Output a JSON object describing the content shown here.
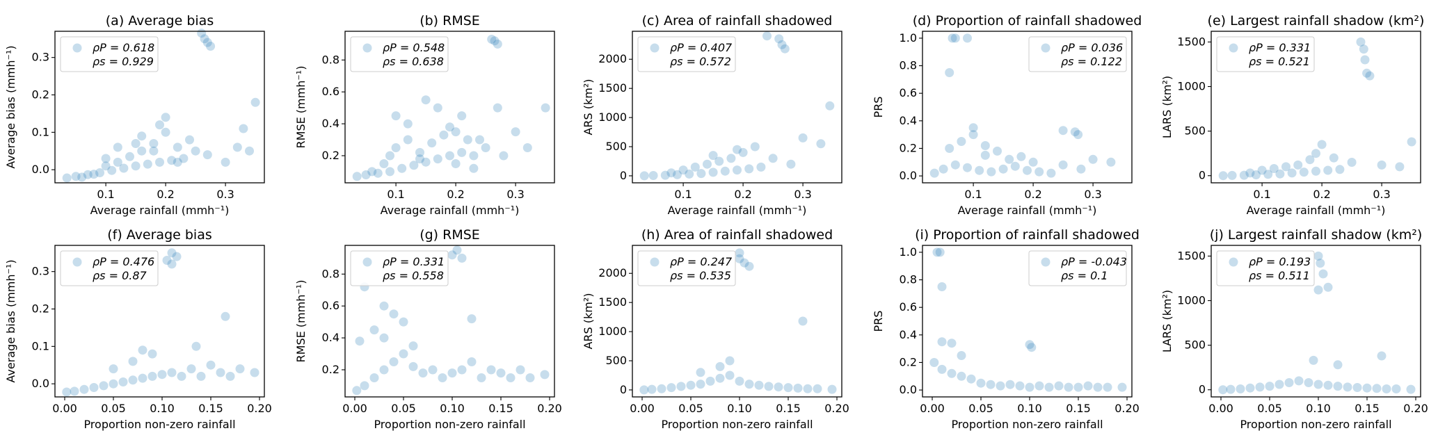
{
  "point_color": "#1f77b4",
  "chart_data": [
    {
      "type": "scatter",
      "title": "(a) Average bias",
      "xlabel": "Average rainfall (mmh⁻¹)",
      "ylabel": "Average bias (mmh⁻¹)",
      "xlim": [
        0.015,
        0.365
      ],
      "ylim": [
        -0.035,
        0.37
      ],
      "xticks": [
        0.1,
        0.2,
        0.3
      ],
      "xticklabels": [
        "0.1",
        "0.2",
        "0.3"
      ],
      "yticks": [
        0,
        0.1,
        0.2,
        0.3
      ],
      "yticklabels": [
        "0.0",
        "0.1",
        "0.2",
        "0.3"
      ],
      "legend": {
        "position": "upper left",
        "lines": [
          "ρP = 0.618",
          "ρs = 0.929"
        ]
      },
      "x": [
        0.035,
        0.05,
        0.07,
        0.09,
        0.11,
        0.13,
        0.15,
        0.17,
        0.19,
        0.21,
        0.23,
        0.06,
        0.08,
        0.1,
        0.12,
        0.14,
        0.16,
        0.18,
        0.2,
        0.22,
        0.25,
        0.12,
        0.16,
        0.19,
        0.24,
        0.27,
        0.3,
        0.32,
        0.33,
        0.34,
        0.35,
        0.26,
        0.265,
        0.27,
        0.275,
        0.1,
        0.15,
        0.2,
        0.18,
        0.22
      ],
      "y": [
        -0.022,
        -0.018,
        -0.013,
        -0.008,
        -0.002,
        0.004,
        0.01,
        0.015,
        0.02,
        0.025,
        0.03,
        -0.02,
        -0.012,
        0.01,
        0.02,
        0.035,
        0.05,
        0.07,
        0.1,
        0.06,
        0.05,
        0.06,
        0.09,
        0.12,
        0.08,
        0.04,
        0.02,
        0.06,
        0.11,
        0.05,
        0.18,
        0.365,
        0.35,
        0.34,
        0.33,
        0.03,
        0.07,
        0.14,
        0.05,
        0.02
      ]
    },
    {
      "type": "scatter",
      "title": "(b) RMSE",
      "xlabel": "Average rainfall (mmh⁻¹)",
      "ylabel": "RMSE  (mmh⁻¹)",
      "xlim": [
        0.015,
        0.365
      ],
      "ylim": [
        0.03,
        0.98
      ],
      "xticks": [
        0.1,
        0.2,
        0.3
      ],
      "xticklabels": [
        "0.1",
        "0.2",
        "0.3"
      ],
      "yticks": [
        0.2,
        0.4,
        0.6,
        0.8
      ],
      "yticklabels": [
        "0.2",
        "0.4",
        "0.6",
        "0.8"
      ],
      "legend": {
        "position": "upper left",
        "lines": [
          "ρP = 0.548",
          "ρs = 0.638"
        ]
      },
      "x": [
        0.035,
        0.05,
        0.07,
        0.09,
        0.11,
        0.13,
        0.15,
        0.17,
        0.19,
        0.21,
        0.23,
        0.06,
        0.08,
        0.1,
        0.12,
        0.14,
        0.16,
        0.18,
        0.2,
        0.22,
        0.25,
        0.1,
        0.12,
        0.15,
        0.17,
        0.19,
        0.21,
        0.24,
        0.27,
        0.3,
        0.32,
        0.35,
        0.26,
        0.265,
        0.27,
        0.09,
        0.14,
        0.2,
        0.23,
        0.28
      ],
      "y": [
        0.07,
        0.08,
        0.09,
        0.1,
        0.12,
        0.14,
        0.16,
        0.18,
        0.2,
        0.22,
        0.2,
        0.1,
        0.15,
        0.25,
        0.3,
        0.22,
        0.28,
        0.33,
        0.35,
        0.3,
        0.25,
        0.45,
        0.4,
        0.55,
        0.5,
        0.38,
        0.45,
        0.3,
        0.5,
        0.35,
        0.25,
        0.5,
        0.93,
        0.92,
        0.9,
        0.2,
        0.18,
        0.15,
        0.12,
        0.2
      ]
    },
    {
      "type": "scatter",
      "title": "(c) Area of rainfall shadowed",
      "xlabel": "Average rainfall (mmh⁻¹)",
      "ylabel": "ARS (km²)",
      "xlim": [
        0.015,
        0.365
      ],
      "ylim": [
        -120,
        2480
      ],
      "xticks": [
        0.1,
        0.2,
        0.3
      ],
      "xticklabels": [
        "0.1",
        "0.2",
        "0.3"
      ],
      "yticks": [
        0,
        500,
        1000,
        1500,
        2000
      ],
      "yticklabels": [
        "0",
        "500",
        "1000",
        "1500",
        "2000"
      ],
      "legend": {
        "position": "upper left",
        "lines": [
          "ρP = 0.407",
          "ρs = 0.572"
        ]
      },
      "x": [
        0.035,
        0.05,
        0.07,
        0.09,
        0.11,
        0.13,
        0.15,
        0.17,
        0.19,
        0.21,
        0.23,
        0.08,
        0.1,
        0.12,
        0.14,
        0.16,
        0.18,
        0.2,
        0.22,
        0.25,
        0.28,
        0.3,
        0.33,
        0.345,
        0.24,
        0.26,
        0.265,
        0.27,
        0.15,
        0.19
      ],
      "y": [
        0,
        5,
        10,
        20,
        30,
        40,
        60,
        80,
        100,
        120,
        150,
        50,
        100,
        150,
        200,
        250,
        300,
        400,
        500,
        300,
        200,
        650,
        550,
        1200,
        2400,
        2350,
        2250,
        2180,
        350,
        450
      ]
    },
    {
      "type": "scatter",
      "title": "(d) Proportion of rainfall shadowed",
      "xlabel": "Average rainfall (mmh⁻¹)",
      "ylabel": "PRS",
      "xlim": [
        0.015,
        0.365
      ],
      "ylim": [
        -0.05,
        1.05
      ],
      "xticks": [
        0.1,
        0.2,
        0.3
      ],
      "xticklabels": [
        "0.1",
        "0.2",
        "0.3"
      ],
      "yticks": [
        0,
        0.2,
        0.4,
        0.6,
        0.8,
        1.0
      ],
      "yticklabels": [
        "0.0",
        "0.2",
        "0.4",
        "0.6",
        "0.8",
        "1.0"
      ],
      "legend": {
        "position": "upper right",
        "lines": [
          "ρP = 0.036",
          "ρs = 0.122"
        ]
      },
      "x": [
        0.035,
        0.05,
        0.07,
        0.09,
        0.11,
        0.13,
        0.15,
        0.17,
        0.19,
        0.21,
        0.23,
        0.06,
        0.08,
        0.1,
        0.12,
        0.14,
        0.16,
        0.2,
        0.25,
        0.28,
        0.3,
        0.33,
        0.065,
        0.07,
        0.09,
        0.06,
        0.27,
        0.275,
        0.25,
        0.1,
        0.12,
        0.18
      ],
      "y": [
        0.02,
        0.05,
        0.08,
        0.06,
        0.04,
        0.03,
        0.05,
        0.07,
        0.04,
        0.03,
        0.02,
        0.2,
        0.25,
        0.3,
        0.15,
        0.18,
        0.12,
        0.1,
        0.08,
        0.05,
        0.12,
        0.1,
        1.0,
        1.0,
        1.0,
        0.75,
        0.32,
        0.3,
        0.33,
        0.35,
        0.22,
        0.14
      ]
    },
    {
      "type": "scatter",
      "title": "(e) Largest rainfall shadow (km²)",
      "xlabel": "Average rainfall (mmh⁻¹)",
      "ylabel": "LARS (km²)",
      "xlim": [
        0.015,
        0.365
      ],
      "ylim": [
        -80,
        1620
      ],
      "xticks": [
        0.1,
        0.2,
        0.3
      ],
      "xticklabels": [
        "0.1",
        "0.2",
        "0.3"
      ],
      "yticks": [
        0,
        500,
        1000,
        1500
      ],
      "yticklabels": [
        "0",
        "500",
        "1000",
        "1500"
      ],
      "legend": {
        "position": "upper left",
        "lines": [
          "ρP = 0.331",
          "ρs = 0.521"
        ]
      },
      "x": [
        0.035,
        0.05,
        0.07,
        0.09,
        0.11,
        0.13,
        0.15,
        0.17,
        0.19,
        0.21,
        0.23,
        0.08,
        0.1,
        0.12,
        0.14,
        0.16,
        0.18,
        0.2,
        0.22,
        0.25,
        0.3,
        0.33,
        0.35,
        0.265,
        0.27,
        0.272,
        0.275,
        0.28,
        0.19
      ],
      "y": [
        0,
        3,
        5,
        10,
        15,
        20,
        30,
        40,
        50,
        60,
        70,
        30,
        60,
        80,
        100,
        120,
        180,
        350,
        200,
        150,
        120,
        100,
        380,
        1500,
        1420,
        1300,
        1150,
        1120,
        250
      ]
    },
    {
      "type": "scatter",
      "title": "(f) Average bias",
      "xlabel": "Proportion non-zero rainfall",
      "ylabel": "Average bias (mmh⁻¹)",
      "xlim": [
        -0.01,
        0.205
      ],
      "ylim": [
        -0.035,
        0.37
      ],
      "xticks": [
        0,
        0.05,
        0.1,
        0.15,
        0.2
      ],
      "xticklabels": [
        "0.00",
        "0.05",
        "0.10",
        "0.15",
        "0.20"
      ],
      "yticks": [
        0,
        0.1,
        0.2,
        0.3
      ],
      "yticklabels": [
        "0.0",
        "0.1",
        "0.2",
        "0.3"
      ],
      "legend": {
        "position": "upper left",
        "lines": [
          "ρP = 0.476",
          "ρs = 0.87"
        ]
      },
      "x": [
        0.002,
        0.01,
        0.02,
        0.03,
        0.04,
        0.05,
        0.06,
        0.07,
        0.08,
        0.09,
        0.1,
        0.11,
        0.12,
        0.13,
        0.14,
        0.15,
        0.16,
        0.17,
        0.18,
        0.195,
        0.05,
        0.07,
        0.09,
        0.105,
        0.11,
        0.11,
        0.115,
        0.165,
        0.135,
        0.08
      ],
      "y": [
        -0.022,
        -0.02,
        -0.015,
        -0.01,
        -0.005,
        0.0,
        0.005,
        0.01,
        0.015,
        0.02,
        0.025,
        0.03,
        0.02,
        0.04,
        0.02,
        0.05,
        0.03,
        0.02,
        0.04,
        0.03,
        0.04,
        0.06,
        0.08,
        0.33,
        0.35,
        0.32,
        0.34,
        0.18,
        0.1,
        0.09
      ]
    },
    {
      "type": "scatter",
      "title": "(g) RMSE",
      "xlabel": "Proportion non-zero rainfall",
      "ylabel": "RMSE  (mmh⁻¹)",
      "xlim": [
        -0.01,
        0.205
      ],
      "ylim": [
        0.03,
        0.98
      ],
      "xticks": [
        0,
        0.05,
        0.1,
        0.15,
        0.2
      ],
      "xticklabels": [
        "0.00",
        "0.05",
        "0.10",
        "0.15",
        "0.20"
      ],
      "yticks": [
        0.2,
        0.4,
        0.6,
        0.8
      ],
      "yticklabels": [
        "0.2",
        "0.4",
        "0.6",
        "0.8"
      ],
      "legend": {
        "position": "upper left",
        "lines": [
          "ρP = 0.331",
          "ρs = 0.558"
        ]
      },
      "x": [
        0.002,
        0.01,
        0.02,
        0.03,
        0.04,
        0.05,
        0.06,
        0.07,
        0.08,
        0.09,
        0.1,
        0.11,
        0.12,
        0.13,
        0.14,
        0.15,
        0.16,
        0.17,
        0.18,
        0.195,
        0.02,
        0.03,
        0.04,
        0.05,
        0.06,
        0.1,
        0.105,
        0.11,
        0.12,
        0.005,
        0.01,
        0.03
      ],
      "y": [
        0.07,
        0.1,
        0.15,
        0.2,
        0.25,
        0.3,
        0.22,
        0.18,
        0.2,
        0.15,
        0.18,
        0.2,
        0.25,
        0.15,
        0.2,
        0.18,
        0.15,
        0.2,
        0.15,
        0.17,
        0.45,
        0.4,
        0.55,
        0.5,
        0.35,
        0.92,
        0.95,
        0.9,
        0.52,
        0.38,
        0.72,
        0.6
      ]
    },
    {
      "type": "scatter",
      "title": "(h) Area of rainfall shadowed",
      "xlabel": "Proportion non-zero rainfall",
      "ylabel": "ARS (km²)",
      "xlim": [
        -0.01,
        0.205
      ],
      "ylim": [
        -120,
        2480
      ],
      "xticks": [
        0,
        0.05,
        0.1,
        0.15,
        0.2
      ],
      "xticklabels": [
        "0.00",
        "0.05",
        "0.10",
        "0.15",
        "0.20"
      ],
      "yticks": [
        0,
        500,
        1000,
        1500,
        2000
      ],
      "yticklabels": [
        "0",
        "500",
        "1000",
        "1500",
        "2000"
      ],
      "legend": {
        "position": "upper left",
        "lines": [
          "ρP = 0.247",
          "ρs = 0.535"
        ]
      },
      "x": [
        0.002,
        0.01,
        0.02,
        0.03,
        0.04,
        0.05,
        0.06,
        0.07,
        0.08,
        0.09,
        0.1,
        0.11,
        0.12,
        0.13,
        0.14,
        0.15,
        0.16,
        0.17,
        0.18,
        0.195,
        0.1,
        0.1,
        0.105,
        0.11,
        0.165,
        0.09,
        0.08,
        0.06
      ],
      "y": [
        0,
        10,
        20,
        40,
        60,
        80,
        100,
        150,
        200,
        250,
        150,
        100,
        80,
        60,
        50,
        40,
        30,
        20,
        20,
        10,
        2350,
        2250,
        2180,
        2120,
        1180,
        500,
        400,
        300
      ]
    },
    {
      "type": "scatter",
      "title": "(i) Proportion of rainfall shadowed",
      "xlabel": "Proportion non-zero rainfall",
      "ylabel": "PRS",
      "xlim": [
        -0.01,
        0.205
      ],
      "ylim": [
        -0.05,
        1.05
      ],
      "xticks": [
        0,
        0.05,
        0.1,
        0.15,
        0.2
      ],
      "xticklabels": [
        "0.00",
        "0.05",
        "0.10",
        "0.15",
        "0.20"
      ],
      "yticks": [
        0,
        0.2,
        0.4,
        0.6,
        0.8,
        1.0
      ],
      "yticklabels": [
        "0.0",
        "0.2",
        "0.4",
        "0.6",
        "0.8",
        "1.0"
      ],
      "legend": {
        "position": "upper right",
        "lines": [
          "ρP = -0.043",
          "ρs = 0.1"
        ]
      },
      "x": [
        0.002,
        0.01,
        0.02,
        0.03,
        0.04,
        0.05,
        0.06,
        0.07,
        0.08,
        0.09,
        0.1,
        0.11,
        0.12,
        0.13,
        0.14,
        0.15,
        0.16,
        0.17,
        0.18,
        0.195,
        0.005,
        0.008,
        0.01,
        0.01,
        0.1,
        0.102,
        0.02,
        0.03
      ],
      "y": [
        0.2,
        0.15,
        0.12,
        0.1,
        0.08,
        0.05,
        0.04,
        0.03,
        0.04,
        0.03,
        0.02,
        0.03,
        0.02,
        0.03,
        0.02,
        0.02,
        0.03,
        0.02,
        0.02,
        0.02,
        1.0,
        1.0,
        0.75,
        0.35,
        0.33,
        0.31,
        0.34,
        0.25
      ]
    },
    {
      "type": "scatter",
      "title": "(j) Largest rainfall shadow (km²)",
      "xlabel": "Proportion non-zero rainfall",
      "ylabel": "LARS (km²)",
      "xlim": [
        -0.01,
        0.205
      ],
      "ylim": [
        -80,
        1620
      ],
      "xticks": [
        0,
        0.05,
        0.1,
        0.15,
        0.2
      ],
      "xticklabels": [
        "0.00",
        "0.05",
        "0.10",
        "0.15",
        "0.20"
      ],
      "yticks": [
        0,
        500,
        1000,
        1500
      ],
      "yticklabels": [
        "0",
        "500",
        "1000",
        "1500"
      ],
      "legend": {
        "position": "upper left",
        "lines": [
          "ρP = 0.193",
          "ρs = 0.511"
        ]
      },
      "x": [
        0.002,
        0.01,
        0.02,
        0.03,
        0.04,
        0.05,
        0.06,
        0.07,
        0.08,
        0.09,
        0.1,
        0.11,
        0.12,
        0.13,
        0.14,
        0.15,
        0.16,
        0.17,
        0.18,
        0.195,
        0.1,
        0.102,
        0.105,
        0.11,
        0.1,
        0.165,
        0.095,
        0.12
      ],
      "y": [
        0,
        5,
        10,
        20,
        30,
        40,
        60,
        80,
        100,
        80,
        60,
        50,
        40,
        30,
        25,
        20,
        15,
        10,
        10,
        5,
        1500,
        1420,
        1300,
        1150,
        1120,
        380,
        330,
        280
      ]
    }
  ]
}
